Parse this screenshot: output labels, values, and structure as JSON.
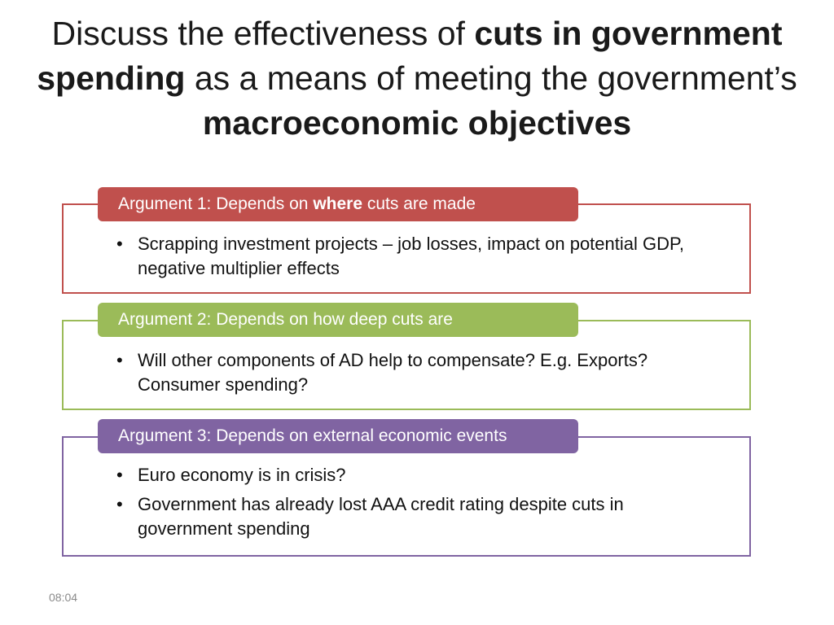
{
  "title": {
    "part1": "Discuss the effectiveness of ",
    "bold1": "cuts in government spending",
    "part2": " as a means of meeting the government’s ",
    "bold2": "macroeconomic objectives"
  },
  "arguments": [
    {
      "header_pre": "Argument 1: Depends on ",
      "header_bold": "where",
      "header_post": " cuts are made",
      "color": "#c0504d",
      "bullets": [
        "Scrapping investment projects – job losses, impact on potential GDP, negative multiplier effects"
      ]
    },
    {
      "header_pre": "Argument 2: Depends on how deep cuts are",
      "header_bold": "",
      "header_post": "",
      "color": "#9bbb59",
      "bullets": [
        "Will other components of AD help to compensate? E.g. Exports? Consumer spending?"
      ]
    },
    {
      "header_pre": "Argument 3: Depends on external economic events",
      "header_bold": "",
      "header_post": "",
      "color": "#8064a2",
      "bullets": [
        "Euro economy is in crisis?",
        "Government has already lost AAA credit rating despite cuts in government spending"
      ]
    }
  ],
  "bullet_symbol": "•",
  "timestamp": "08:04"
}
